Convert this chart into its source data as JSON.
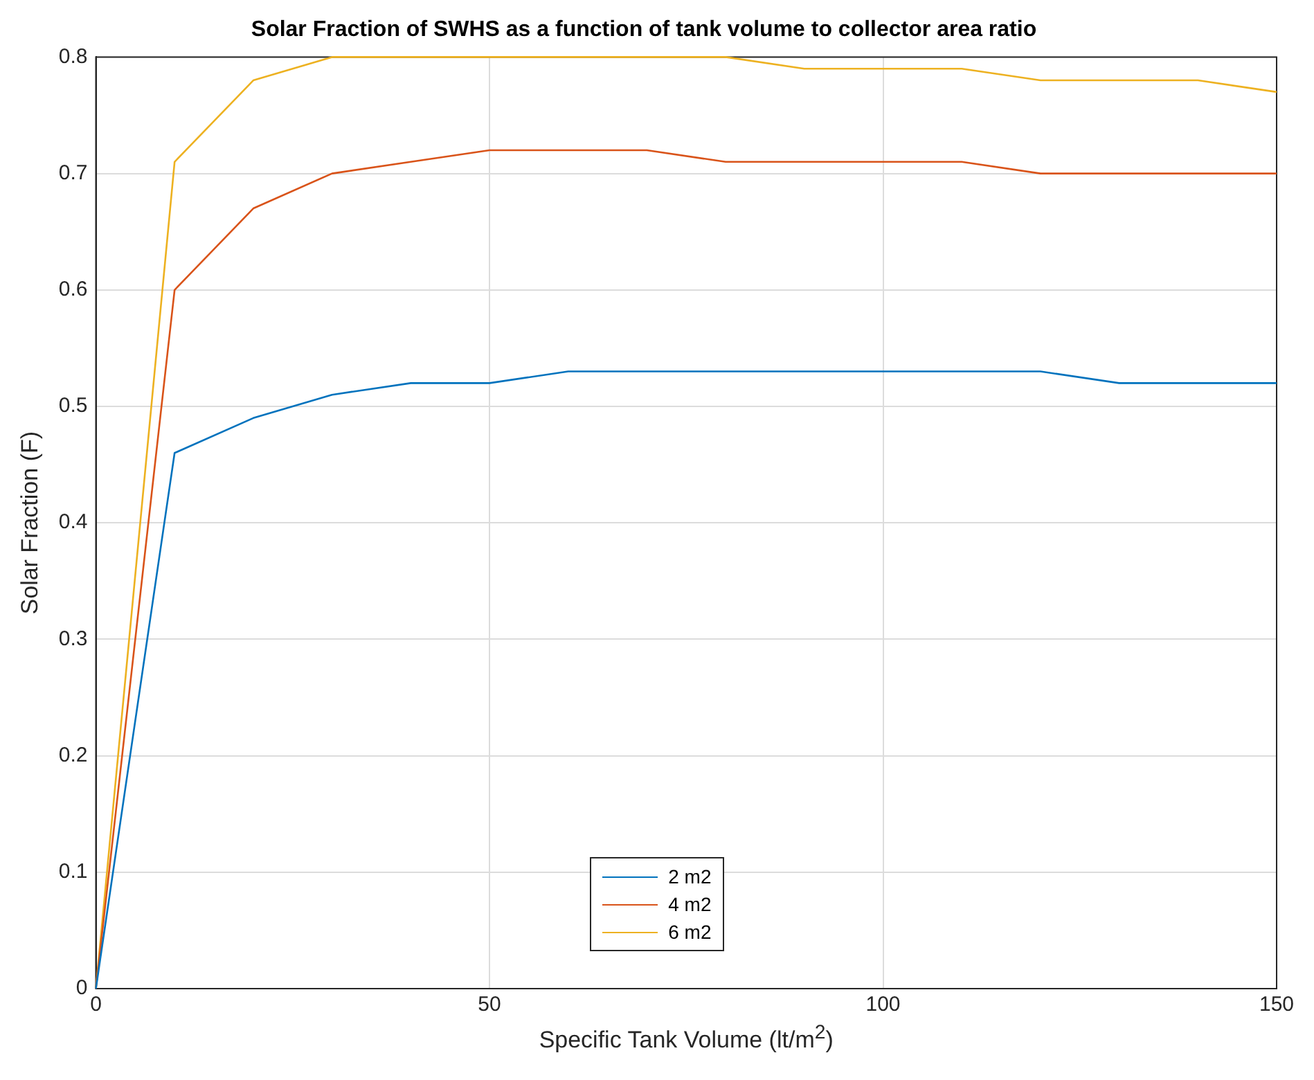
{
  "chart_data": {
    "type": "line",
    "title": "Solar Fraction of SWHS as a function of tank volume to collector area ratio",
    "xlabel": "Specific Tank Volume (lt/m$^{2}$)",
    "ylabel": "Solar Fraction (F)",
    "x": [
      0,
      10,
      20,
      30,
      40,
      50,
      60,
      70,
      80,
      90,
      100,
      110,
      120,
      130,
      140,
      150
    ],
    "series": [
      {
        "name": "2 m2",
        "color": "#0072bd",
        "values": [
          0,
          0.46,
          0.49,
          0.51,
          0.52,
          0.52,
          0.53,
          0.53,
          0.53,
          0.53,
          0.53,
          0.53,
          0.53,
          0.52,
          0.52,
          0.52
        ]
      },
      {
        "name": "4 m2",
        "color": "#d95319",
        "values": [
          0,
          0.6,
          0.67,
          0.7,
          0.71,
          0.72,
          0.72,
          0.72,
          0.71,
          0.71,
          0.71,
          0.71,
          0.7,
          0.7,
          0.7,
          0.7
        ]
      },
      {
        "name": "6 m2",
        "color": "#edb120",
        "values": [
          0,
          0.71,
          0.78,
          0.8,
          0.8,
          0.8,
          0.8,
          0.8,
          0.8,
          0.79,
          0.79,
          0.79,
          0.78,
          0.78,
          0.78,
          0.77
        ]
      }
    ],
    "xlim": [
      0,
      150
    ],
    "xticks": [
      0,
      50,
      100,
      150
    ],
    "ylim": [
      0,
      0.8
    ],
    "yticks": [
      0,
      0.1,
      0.2,
      0.3,
      0.4,
      0.5,
      0.6,
      0.7,
      0.8
    ],
    "grid": true,
    "legend": "bottom",
    "marker": "none",
    "line_style": "solid"
  }
}
